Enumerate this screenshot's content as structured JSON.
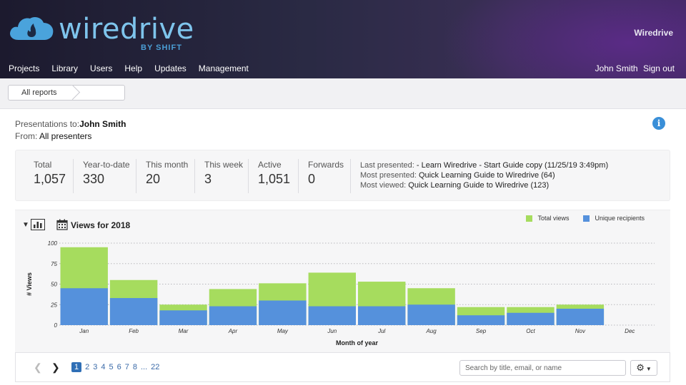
{
  "header": {
    "logo_word": "wiredrive",
    "logo_sub": "BY SHIFT",
    "brand": "Wiredrive",
    "nav": [
      "Projects",
      "Library",
      "Users",
      "Help",
      "Updates",
      "Management"
    ],
    "user_name": "John Smith",
    "sign_out": "Sign out"
  },
  "breadcrumb": {
    "label": "All reports"
  },
  "meta": {
    "to_label": "Presentations to:",
    "to_value": "John Smith",
    "from_label": "From:",
    "from_value": "All presenters"
  },
  "stats": [
    {
      "label": "Total",
      "value": "1,057"
    },
    {
      "label": "Year-to-date",
      "value": "330"
    },
    {
      "label": "This month",
      "value": "20"
    },
    {
      "label": "This week",
      "value": "3"
    },
    {
      "label": "Active",
      "value": "1,051"
    },
    {
      "label": "Forwards",
      "value": "0"
    }
  ],
  "presented": {
    "last_label": "Last presented:",
    "last_value": "- Learn Wiredrive - Start Guide copy (11/25/19 3:49pm)",
    "most_label": "Most presented:",
    "most_value": "Quick Learning Guide to Wiredrive (64)",
    "viewed_label": "Most viewed:",
    "viewed_value": "Quick Learning Guide to Wiredrive (123)"
  },
  "chart_title": "Views for 2018",
  "colors": {
    "total": "#a6dc5e",
    "unique": "#5591dc",
    "accent": "#2f6fb6"
  },
  "chart_data": {
    "type": "bar",
    "title": "Views for 2018",
    "xlabel": "Month of year",
    "ylabel": "# Views",
    "ylim": [
      0,
      100
    ],
    "yticks": [
      0,
      25,
      50,
      75,
      100
    ],
    "categories": [
      "Jan",
      "Feb",
      "Mar",
      "Apr",
      "May",
      "Jun",
      "Jul",
      "Aug",
      "Sep",
      "Oct",
      "Nov",
      "Dec"
    ],
    "series": [
      {
        "name": "Total views",
        "values": [
          95,
          55,
          25,
          44,
          51,
          64,
          53,
          45,
          22,
          22,
          25,
          0
        ]
      },
      {
        "name": "Unique recipients",
        "values": [
          45,
          33,
          18,
          23,
          30,
          23,
          23,
          25,
          12,
          15,
          20,
          0
        ]
      }
    ],
    "grid": true,
    "legend": "top-right"
  },
  "pager": {
    "pages": [
      "1",
      "2",
      "3",
      "4",
      "5",
      "6",
      "7",
      "8",
      "...",
      "22"
    ],
    "current": "1",
    "search_placeholder": "Search by title, email, or name"
  }
}
